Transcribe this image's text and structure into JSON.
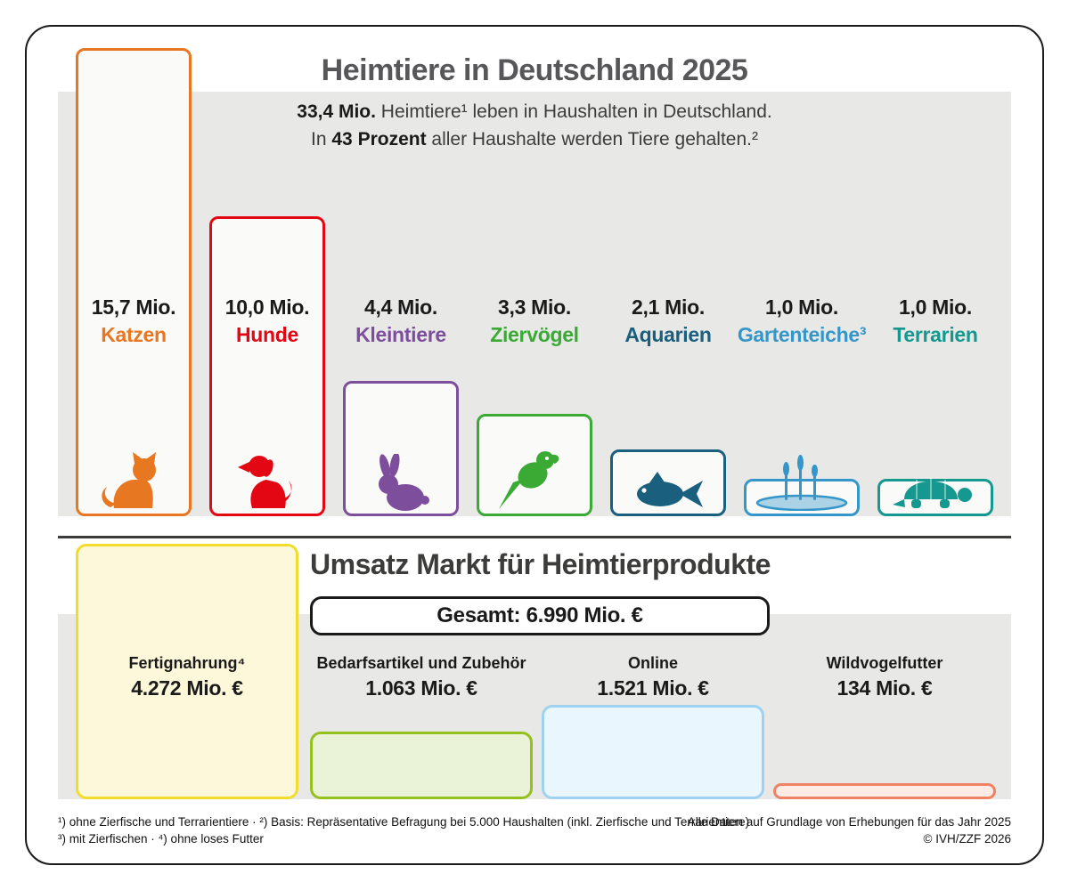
{
  "pets": {
    "title": "Heimtiere in Deutschland 2025",
    "subtitle": {
      "l1_bold": "33,4 Mio.",
      "l1_rest": " Heimtiere¹ leben in Haushalten in Deutschland.",
      "l2_pre": "In ",
      "l2_bold": "43 Prozent",
      "l2_rest": " aller Haushalte werden Tiere gehalten.²"
    },
    "items": [
      {
        "value": "15,7 Mio.",
        "name": "Katzen",
        "color": "#e87722"
      },
      {
        "value": "10,0 Mio.",
        "name": "Hunde",
        "color": "#e30613"
      },
      {
        "value": "4,4 Mio.",
        "name": "Kleintiere",
        "color": "#7d4e9c"
      },
      {
        "value": "3,3 Mio.",
        "name": "Ziervögel",
        "color": "#3aaa35"
      },
      {
        "value": "2,1 Mio.",
        "name": "Aquarien",
        "color": "#1a5f7e"
      },
      {
        "value": "1,0 Mio.",
        "name": "Gartenteiche³",
        "color": "#3596c9"
      },
      {
        "value": "1,0 Mio.",
        "name": "Terrarien",
        "color": "#14988f"
      }
    ]
  },
  "market": {
    "title": "Umsatz Markt für Heimtierprodukte",
    "total_label": "Gesamt: 6.990 Mio. €",
    "items": [
      {
        "name": "Fertignahrung⁴",
        "value": "4.272 Mio. €",
        "border": "#f2dc2e",
        "fill": "#fdf8da"
      },
      {
        "name": "Bedarfsartikel und Zubehör",
        "value": "1.063 Mio. €",
        "border": "#95c11f",
        "fill": "#eaf2d7"
      },
      {
        "name": "Online",
        "value": "1.521 Mio. €",
        "border": "#9ed2f0",
        "fill": "#eaf6fd"
      },
      {
        "name": "Wildvogelfutter",
        "value": "134 Mio. €",
        "border": "#ef8264",
        "fill": "#fcece5"
      }
    ]
  },
  "footnotes": {
    "left_line1": "¹) ohne Zierfische und Terrarientiere · ²) Basis: Repräsentative Befragung bei 5.000 Haushalten (inkl. Zierfische und Terrarientiere)",
    "left_line2": "³) mit Zierfischen · ⁴) ohne loses Futter",
    "right_line1": "Alle Daten auf Grundlage von Erhebungen für das Jahr 2025",
    "right_line2": "© IVH/ZZF 2026"
  },
  "chart_data": [
    {
      "type": "bar",
      "title": "Heimtiere in Deutschland 2025",
      "subtitle": "33,4 Mio. Heimtiere¹ leben in Haushalten in Deutschland. In 43 Prozent aller Haushalte werden Tiere gehalten.²",
      "categories": [
        "Katzen",
        "Hunde",
        "Kleintiere",
        "Ziervögel",
        "Aquarien",
        "Gartenteiche³",
        "Terrarien"
      ],
      "values": [
        15.7,
        10.0,
        4.4,
        3.3,
        2.1,
        1.0,
        1.0
      ],
      "unit": "Mio.",
      "value_labels": [
        "15,7 Mio.",
        "10,0 Mio.",
        "4,4 Mio.",
        "3,3 Mio.",
        "2,1 Mio.",
        "1,0 Mio.",
        "1,0 Mio."
      ],
      "colors": [
        "#e87722",
        "#e30613",
        "#7d4e9c",
        "#3aaa35",
        "#1a5f7e",
        "#3596c9",
        "#14988f"
      ],
      "ylim": [
        0,
        16
      ],
      "grid": false,
      "legend": false
    },
    {
      "type": "bar",
      "title": "Umsatz Markt für Heimtierprodukte",
      "total": "Gesamt: 6.990 Mio. €",
      "categories": [
        "Fertignahrung⁴",
        "Bedarfsartikel und Zubehör",
        "Online",
        "Wildvogelfutter"
      ],
      "values": [
        4272,
        1063,
        1521,
        134
      ],
      "unit": "Mio. €",
      "value_labels": [
        "4.272 Mio. €",
        "1.063 Mio. €",
        "1.521 Mio. €",
        "134 Mio. €"
      ],
      "colors": [
        "#f2dc2e",
        "#95c11f",
        "#9ed2f0",
        "#ef8264"
      ],
      "ylim": [
        0,
        4400
      ],
      "grid": false,
      "legend": false
    }
  ]
}
